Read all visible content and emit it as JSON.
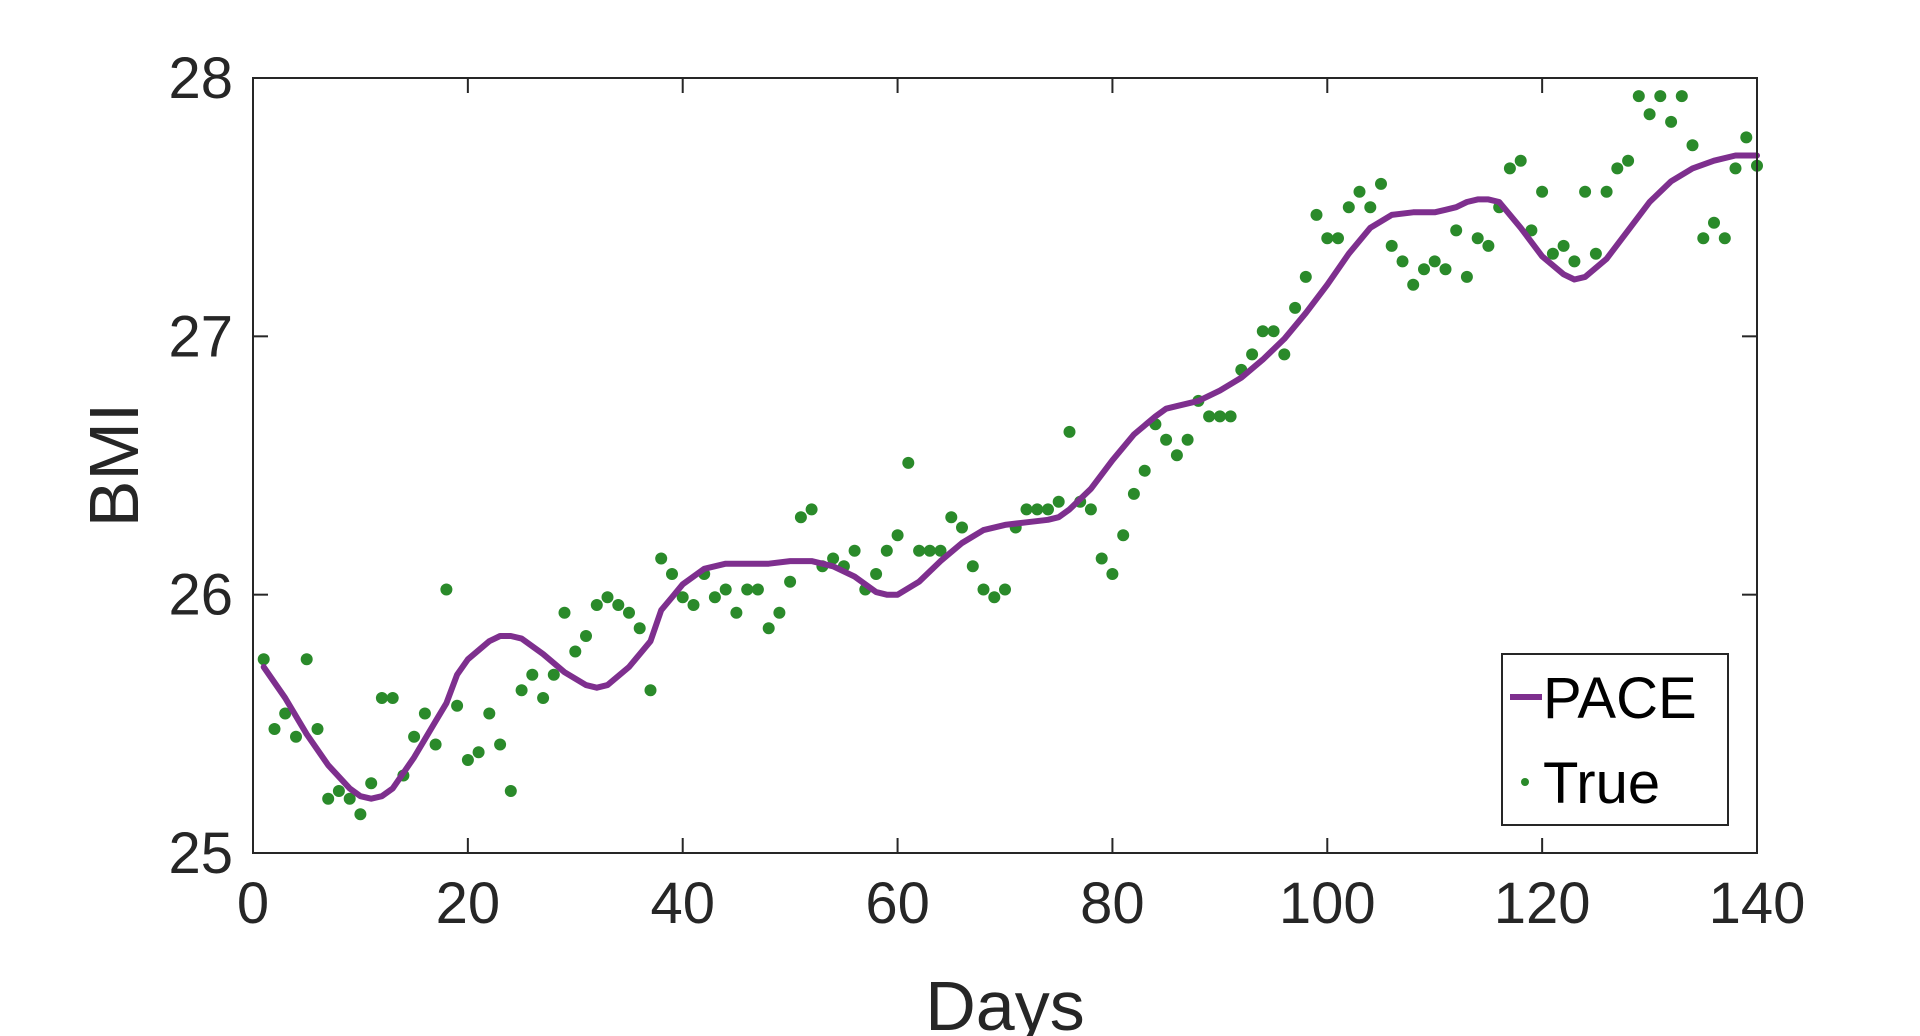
{
  "chart_data": {
    "type": "line",
    "xlabel": "Days",
    "ylabel": "BMI",
    "xlim": [
      0,
      140
    ],
    "ylim": [
      25,
      28
    ],
    "xticks": [
      0,
      20,
      40,
      60,
      80,
      100,
      120,
      140
    ],
    "yticks": [
      25,
      26,
      27,
      28
    ],
    "grid": false,
    "box": true,
    "legend_position": "bottom-right",
    "series": [
      {
        "name": "PACE",
        "kind": "line",
        "color": "#7e2f8e",
        "x": [
          1,
          3,
          5,
          7,
          9,
          10,
          11,
          12,
          13,
          15,
          17,
          18,
          19,
          20,
          22,
          23,
          24,
          25,
          27,
          29,
          31,
          32,
          33,
          35,
          37,
          38,
          39,
          40,
          42,
          44,
          46,
          48,
          50,
          52,
          54,
          56,
          58,
          59,
          60,
          62,
          64,
          66,
          68,
          70,
          72,
          74,
          75,
          76,
          78,
          80,
          82,
          84,
          85,
          86,
          88,
          90,
          92,
          94,
          96,
          98,
          100,
          102,
          104,
          106,
          108,
          110,
          111,
          112,
          113,
          114,
          115,
          116,
          118,
          120,
          122,
          123,
          124,
          126,
          128,
          130,
          132,
          134,
          136,
          138,
          140
        ],
        "y": [
          25.72,
          25.6,
          25.46,
          25.34,
          25.25,
          25.22,
          25.21,
          25.22,
          25.25,
          25.37,
          25.51,
          25.58,
          25.69,
          25.75,
          25.82,
          25.84,
          25.84,
          25.83,
          25.77,
          25.7,
          25.65,
          25.64,
          25.65,
          25.72,
          25.82,
          25.94,
          25.99,
          26.04,
          26.1,
          26.12,
          26.12,
          26.12,
          26.13,
          26.13,
          26.11,
          26.07,
          26.01,
          26.0,
          26.0,
          26.05,
          26.13,
          26.2,
          26.25,
          26.27,
          26.28,
          26.29,
          26.3,
          26.33,
          26.41,
          26.52,
          26.62,
          26.69,
          26.72,
          26.73,
          26.75,
          26.79,
          26.84,
          26.91,
          26.99,
          27.09,
          27.2,
          27.32,
          27.42,
          27.47,
          27.48,
          27.48,
          27.49,
          27.5,
          27.52,
          27.53,
          27.53,
          27.52,
          27.42,
          27.31,
          27.24,
          27.22,
          27.23,
          27.3,
          27.41,
          27.52,
          27.6,
          27.65,
          27.68,
          27.7,
          27.7
        ]
      },
      {
        "name": "True",
        "kind": "scatter",
        "color": "#2a8a2a",
        "x": [
          1,
          2,
          3,
          4,
          5,
          6,
          7,
          8,
          9,
          10,
          11,
          12,
          13,
          14,
          15,
          16,
          17,
          18,
          19,
          20,
          21,
          22,
          23,
          24,
          25,
          26,
          27,
          28,
          29,
          30,
          31,
          32,
          33,
          34,
          35,
          36,
          37,
          38,
          39,
          40,
          41,
          42,
          43,
          44,
          45,
          46,
          47,
          48,
          49,
          50,
          51,
          52,
          53,
          54,
          55,
          56,
          57,
          58,
          59,
          60,
          61,
          62,
          63,
          64,
          65,
          66,
          67,
          68,
          69,
          70,
          71,
          72,
          73,
          74,
          75,
          76,
          77,
          78,
          79,
          80,
          81,
          82,
          83,
          84,
          85,
          86,
          87,
          88,
          89,
          90,
          91,
          92,
          93,
          94,
          95,
          96,
          97,
          98,
          99,
          100,
          101,
          102,
          103,
          104,
          105,
          106,
          107,
          108,
          109,
          110,
          111,
          112,
          113,
          114,
          115,
          116,
          117,
          118,
          119,
          120,
          121,
          122,
          123,
          124,
          125,
          126,
          127,
          128,
          129,
          130,
          131,
          132,
          133,
          134,
          135,
          136,
          137,
          138,
          139,
          140
        ],
        "y": [
          25.75,
          25.48,
          25.54,
          25.45,
          25.75,
          25.48,
          25.21,
          25.24,
          25.21,
          25.15,
          25.27,
          25.6,
          25.6,
          25.3,
          25.45,
          25.54,
          25.42,
          26.02,
          25.57,
          25.36,
          25.39,
          25.54,
          25.42,
          25.24,
          25.63,
          25.69,
          25.6,
          25.69,
          25.93,
          25.78,
          25.84,
          25.96,
          25.99,
          25.96,
          25.93,
          25.87,
          25.63,
          26.14,
          26.08,
          25.99,
          25.96,
          26.08,
          25.99,
          26.02,
          25.93,
          26.02,
          26.02,
          25.87,
          25.93,
          26.05,
          26.3,
          26.33,
          26.11,
          26.14,
          26.11,
          26.17,
          26.02,
          26.08,
          26.17,
          26.23,
          26.51,
          26.17,
          26.17,
          26.17,
          26.3,
          26.26,
          26.11,
          26.02,
          25.99,
          26.02,
          26.26,
          26.33,
          26.33,
          26.33,
          26.36,
          26.63,
          26.36,
          26.33,
          26.14,
          26.08,
          26.23,
          26.39,
          26.48,
          26.66,
          26.6,
          26.54,
          26.6,
          26.75,
          26.69,
          26.69,
          26.69,
          26.87,
          26.93,
          27.02,
          27.02,
          26.93,
          27.11,
          27.23,
          27.47,
          27.38,
          27.38,
          27.5,
          27.56,
          27.5,
          27.59,
          27.35,
          27.29,
          27.2,
          27.26,
          27.29,
          27.26,
          27.41,
          27.23,
          27.38,
          27.35,
          27.5,
          27.65,
          27.68,
          27.41,
          27.56,
          27.32,
          27.35,
          27.29,
          27.56,
          27.32,
          27.56,
          27.65,
          27.68,
          27.93,
          27.86,
          27.93,
          27.83,
          27.93,
          27.74,
          27.38,
          27.44,
          27.38,
          27.65,
          27.77,
          27.66
        ]
      }
    ]
  }
}
